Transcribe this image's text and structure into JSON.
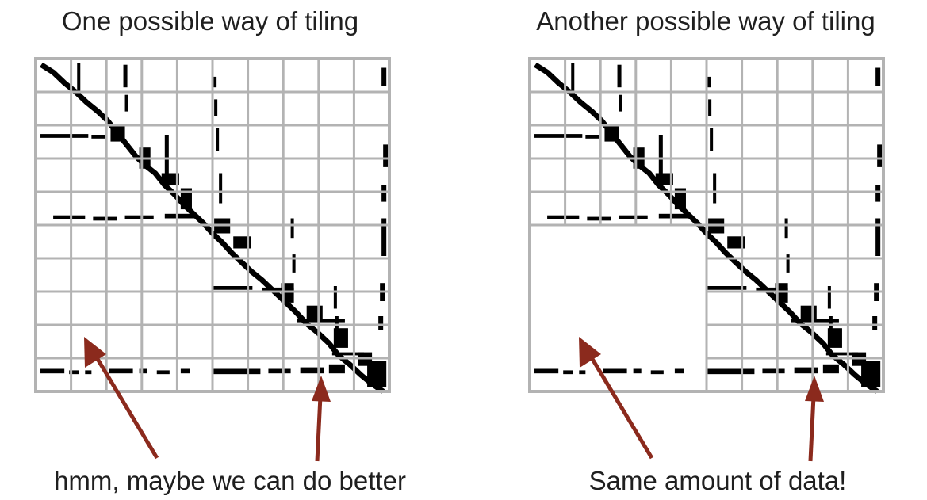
{
  "left_panel": {
    "title": "One possible way of tiling",
    "caption": "hmm, maybe we can do better"
  },
  "right_panel": {
    "title": "Another possible way of tiling",
    "caption": "Same amount of data!"
  },
  "colors": {
    "grid": "#b3b3b3",
    "nonzero": "#000000",
    "arrow": "#8b2a1d",
    "background": "#ffffff"
  },
  "matrix": {
    "grid_cells": 10,
    "right_merged_block": "lower-left 5x5 cells merged into one tile"
  }
}
